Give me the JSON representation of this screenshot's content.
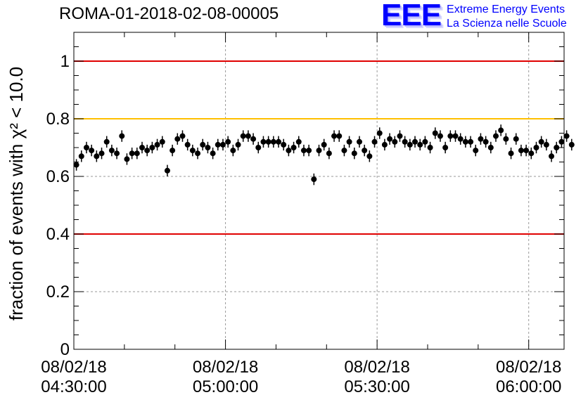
{
  "header": {
    "title": "ROMA-01-2018-02-08-00005",
    "logo_mark": "EEE",
    "logo_line1": "Extreme Energy Events",
    "logo_line2": "La Scienza nelle Scuole"
  },
  "colors": {
    "threshold_red": "#e00000",
    "threshold_yellow": "#ffc000",
    "points": "#000000",
    "logo": "#0000ff"
  },
  "chart_data": {
    "type": "scatter",
    "ylabel": "fraction of events with χ² < 10.0",
    "ylim": [
      0,
      1.1
    ],
    "yticks": [
      0,
      0.2,
      0.4,
      0.6,
      0.8,
      1
    ],
    "ytick_labels": [
      "0",
      "0.2",
      "0.4",
      "0.6",
      "0.8",
      "1"
    ],
    "xlim_minutes": [
      0,
      97
    ],
    "xticks_minutes": [
      0,
      30,
      60,
      90
    ],
    "xtick_labels": [
      [
        "08/02/18",
        "04:30:00"
      ],
      [
        "08/02/18",
        "05:00:00"
      ],
      [
        "08/02/18",
        "05:30:00"
      ],
      [
        "08/02/18",
        "06:00:00"
      ]
    ],
    "grid": true,
    "reference_lines": [
      {
        "y": 1.0,
        "color": "red"
      },
      {
        "y": 0.8,
        "color": "yellow"
      },
      {
        "y": 0.4,
        "color": "red"
      }
    ],
    "error": 0.02,
    "series": [
      {
        "x_start": "04:30:00",
        "x_step_minutes": 1,
        "values": [
          0.64,
          0.67,
          0.7,
          0.69,
          0.67,
          0.68,
          0.72,
          0.69,
          0.68,
          0.74,
          0.66,
          0.68,
          0.68,
          0.7,
          0.69,
          0.7,
          0.71,
          0.72,
          0.62,
          0.69,
          0.73,
          0.74,
          0.71,
          0.69,
          0.68,
          0.71,
          0.7,
          0.68,
          0.71,
          0.71,
          0.72,
          0.69,
          0.71,
          0.74,
          0.74,
          0.73,
          0.7,
          0.72,
          0.72,
          0.72,
          0.72,
          0.71,
          0.69,
          0.7,
          0.72,
          0.69,
          0.69,
          0.59,
          0.69,
          0.71,
          0.68,
          0.74,
          0.74,
          0.69,
          0.72,
          0.68,
          0.72,
          0.69,
          0.67,
          0.72,
          0.75,
          0.71,
          0.73,
          0.72,
          0.74,
          0.72,
          0.71,
          0.72,
          0.71,
          0.72,
          0.7,
          0.75,
          0.74,
          0.7,
          0.74,
          0.74,
          0.73,
          0.72,
          0.72,
          0.69,
          0.73,
          0.72,
          0.7,
          0.74,
          0.76,
          0.73,
          0.68,
          0.73,
          0.69,
          0.69,
          0.68,
          0.7,
          0.72,
          0.71,
          0.67,
          0.7,
          0.72,
          0.74,
          0.71
        ]
      }
    ]
  }
}
